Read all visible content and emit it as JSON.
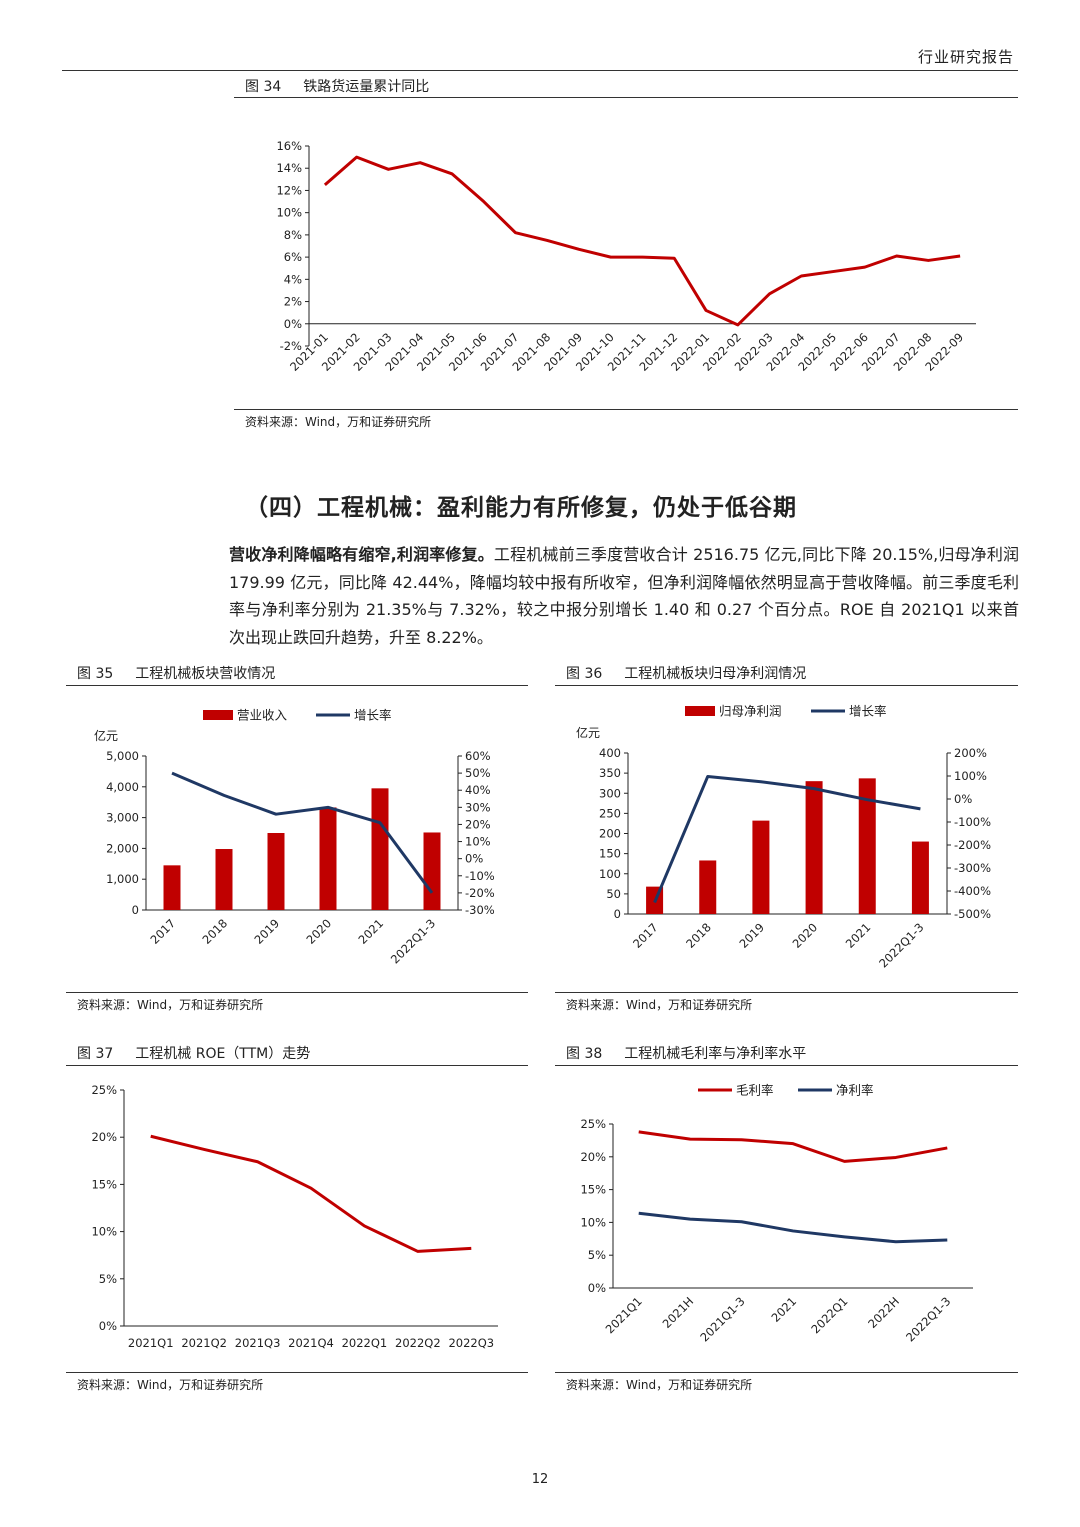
{
  "header": {
    "doc_type": "行业研究报告"
  },
  "fig34": {
    "label": "图 34",
    "title": "铁路货运量累计同比",
    "source": "资料来源：Wind，万和证券研究所"
  },
  "section": {
    "heading": "（四）工程机械：盈利能力有所修复，仍处于低谷期"
  },
  "paragraph": {
    "lead": "营收净利降幅略有缩窄,利润率修复。",
    "body": "工程机械前三季度营收合计 2516.75 亿元,同比下降 20.15%,归母净利润 179.99 亿元，同比降 42.44%，降幅均较中报有所收窄，但净利润降幅依然明显高于营收降幅。前三季度毛利率与净利率分别为 21.35%与 7.32%，较之中报分别增长 1.40 和 0.27 个百分点。ROE 自 2021Q1 以来首次出现止跌回升趋势，升至 8.22%。"
  },
  "fig35": {
    "label": "图 35",
    "title": "工程机械板块营收情况",
    "source": "资料来源：Wind，万和证券研究所"
  },
  "fig36": {
    "label": "图 36",
    "title": "工程机械板块归母净利润情况",
    "source": "资料来源：Wind，万和证券研究所"
  },
  "fig37": {
    "label": "图 37",
    "title": "工程机械 ROE（TTM）走势",
    "source": "资料来源：Wind，万和证券研究所"
  },
  "fig38": {
    "label": "图 38",
    "title": "工程机械毛利率与净利率水平",
    "source": "资料来源：Wind，万和证券研究所"
  },
  "page_number": "12",
  "colors": {
    "red": "#C00000",
    "navy": "#1F3864"
  },
  "chart_data": [
    {
      "id": "fig34",
      "type": "line",
      "x": [
        "2021-01",
        "2021-02",
        "2021-03",
        "2021-04",
        "2021-05",
        "2021-06",
        "2021-07",
        "2021-08",
        "2021-09",
        "2021-10",
        "2021-11",
        "2021-12",
        "2022-01",
        "2022-02",
        "2022-03",
        "2022-04",
        "2022-05",
        "2022-06",
        "2022-07",
        "2022-08",
        "2022-09"
      ],
      "series": [
        {
          "values": [
            12.5,
            15.0,
            13.9,
            14.5,
            13.5,
            11.0,
            8.2,
            7.5,
            6.7,
            6.0,
            6.0,
            5.9,
            1.2,
            -0.1,
            2.7,
            4.3,
            4.7,
            5.1,
            6.1,
            5.7,
            6.1
          ],
          "color": "#C00000"
        }
      ],
      "ylim": [
        -2,
        16
      ],
      "yticks": [
        "-2%",
        "0%",
        "2%",
        "4%",
        "6%",
        "8%",
        "10%",
        "12%",
        "14%",
        "16%"
      ],
      "legend": "none"
    },
    {
      "id": "fig35",
      "type": "bar+line",
      "categories": [
        "2017",
        "2018",
        "2019",
        "2020",
        "2021",
        "2022Q1-3"
      ],
      "series": [
        {
          "name": "营业收入",
          "type": "bar",
          "axis": "left",
          "values": [
            1450,
            1980,
            2500,
            3330,
            3950,
            2517
          ],
          "color": "#C00000"
        },
        {
          "name": "增长率",
          "type": "line",
          "axis": "right",
          "values": [
            50,
            37,
            26,
            30,
            21,
            -20
          ],
          "color": "#1F3864"
        }
      ],
      "left_unit": "亿元",
      "ylim_left": [
        0,
        5000
      ],
      "yticks_left": [
        "0",
        "1,000",
        "2,000",
        "3,000",
        "4,000",
        "5,000"
      ],
      "ylim_right": [
        -30,
        60
      ],
      "yticks_right": [
        "-30%",
        "-20%",
        "-10%",
        "0%",
        "10%",
        "20%",
        "30%",
        "40%",
        "50%",
        "60%"
      ],
      "legend": "top"
    },
    {
      "id": "fig36",
      "type": "bar+line",
      "categories": [
        "2017",
        "2018",
        "2019",
        "2020",
        "2021",
        "2022Q1-3"
      ],
      "series": [
        {
          "name": "归母净利润",
          "type": "bar",
          "axis": "left",
          "values": [
            68,
            133,
            232,
            330,
            337,
            180
          ],
          "color": "#C00000"
        },
        {
          "name": "增长率",
          "type": "line",
          "axis": "right",
          "values": [
            -450,
            98,
            75,
            45,
            -3,
            -43
          ],
          "color": "#1F3864"
        }
      ],
      "left_unit": "亿元",
      "ylim_left": [
        0,
        400
      ],
      "yticks_left": [
        "0",
        "50",
        "100",
        "150",
        "200",
        "250",
        "300",
        "350",
        "400"
      ],
      "ylim_right": [
        -500,
        200
      ],
      "yticks_right": [
        "-500%",
        "-400%",
        "-300%",
        "-200%",
        "-100%",
        "0%",
        "100%",
        "200%"
      ],
      "legend": "top"
    },
    {
      "id": "fig37",
      "type": "line",
      "x": [
        "2021Q1",
        "2021Q2",
        "2021Q3",
        "2021Q4",
        "2022Q1",
        "2022Q2",
        "2022Q3"
      ],
      "series": [
        {
          "values": [
            20.1,
            18.7,
            17.4,
            14.6,
            10.6,
            7.9,
            8.22
          ],
          "color": "#C00000"
        }
      ],
      "ylim": [
        0,
        25
      ],
      "yticks": [
        "0%",
        "5%",
        "10%",
        "15%",
        "20%",
        "25%"
      ],
      "legend": "none"
    },
    {
      "id": "fig38",
      "type": "line",
      "x": [
        "2021Q1",
        "2021H",
        "2021Q1-3",
        "2021",
        "2022Q1",
        "2022H",
        "2022Q1-3"
      ],
      "series": [
        {
          "name": "毛利率",
          "values": [
            23.8,
            22.7,
            22.6,
            22.0,
            19.3,
            19.9,
            21.35
          ],
          "color": "#C00000"
        },
        {
          "name": "净利率",
          "values": [
            11.4,
            10.5,
            10.1,
            8.7,
            7.8,
            7.05,
            7.32
          ],
          "color": "#1F3864"
        }
      ],
      "ylim": [
        0,
        25
      ],
      "yticks": [
        "0%",
        "5%",
        "10%",
        "15%",
        "20%",
        "25%"
      ],
      "legend": "top"
    }
  ]
}
